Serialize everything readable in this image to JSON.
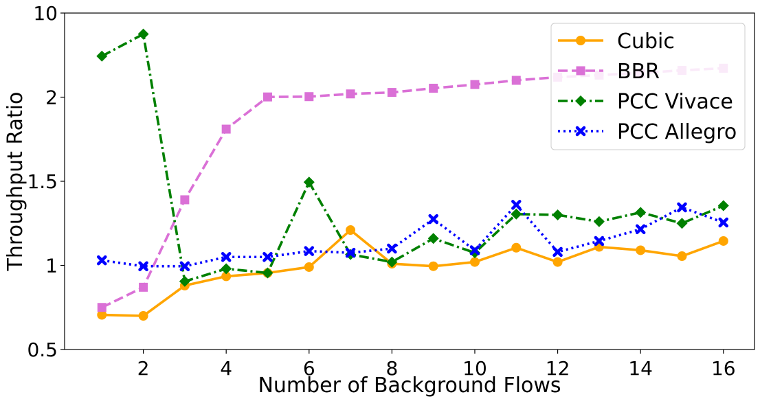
{
  "chart_data": {
    "type": "line",
    "xlabel": "Number of Background Flows",
    "ylabel": "Throughput Ratio",
    "x": [
      1,
      2,
      3,
      4,
      5,
      6,
      7,
      8,
      9,
      10,
      11,
      12,
      13,
      14,
      15,
      16
    ],
    "xlim": [
      0.1,
      16.75
    ],
    "ylim": [
      0.5,
      10
    ],
    "x_ticks": [
      2,
      4,
      6,
      8,
      10,
      12,
      14,
      16
    ],
    "y_ticks": [
      {
        "value": 0.5,
        "label": "0.5"
      },
      {
        "value": 1,
        "label": "1"
      },
      {
        "value": 1.5,
        "label": "1.5"
      },
      {
        "value": 2,
        "label": "2"
      },
      {
        "value": 10,
        "label": "10"
      }
    ],
    "grid": false,
    "legend_position": "top-right",
    "series": [
      {
        "name": "Cubic",
        "color": "#ffa500",
        "line_style": "solid",
        "marker": "circle",
        "values": [
          0.706,
          0.7,
          0.88,
          0.935,
          0.955,
          0.99,
          1.21,
          1.01,
          0.995,
          1.02,
          1.105,
          1.02,
          1.11,
          1.09,
          1.055,
          1.145
        ]
      },
      {
        "name": "BBR",
        "color": "#da70d6",
        "line_style": "dashed",
        "marker": "square",
        "values": [
          0.75,
          0.87,
          1.39,
          1.81,
          2.02,
          2.05,
          2.31,
          2.45,
          2.85,
          3.2,
          3.6,
          3.9,
          4.1,
          4.3,
          4.55,
          4.75
        ]
      },
      {
        "name": "PCC Vivace",
        "color": "#008000",
        "line_style": "dashdot",
        "marker": "diamond",
        "values": [
          5.9,
          8.0,
          0.905,
          0.98,
          0.955,
          1.495,
          1.065,
          1.02,
          1.16,
          1.075,
          1.305,
          1.3,
          1.26,
          1.315,
          1.25,
          1.355
        ]
      },
      {
        "name": "PCC Allegro",
        "color": "#0000ff",
        "line_style": "dotted",
        "marker": "x",
        "values": [
          1.03,
          0.995,
          0.995,
          1.05,
          1.05,
          1.085,
          1.075,
          1.1,
          1.275,
          1.09,
          1.36,
          1.08,
          1.145,
          1.215,
          1.345,
          1.255
        ]
      }
    ]
  }
}
